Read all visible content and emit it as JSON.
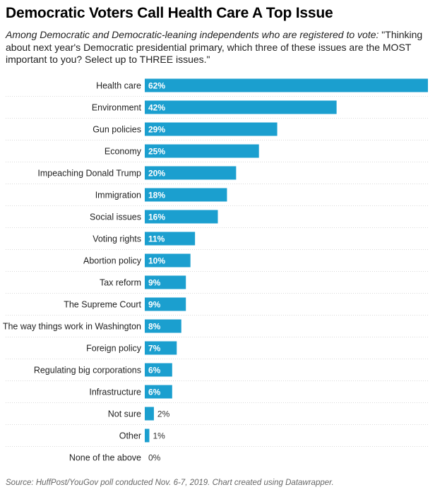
{
  "title": "Democratic Voters Call Health Care A Top Issue",
  "subtitle": {
    "lead": "Among Democratic and Democratic-leaning independents who are registered to vote:",
    "question": " \"Thinking about next year's Democratic presidential primary, which three of these issues are the MOST important to you? Select up to THREE issues.\""
  },
  "source": "Source: HuffPost/YouGov poll conducted Nov. 6-7, 2019. Chart created using Datawrapper.",
  "colors": {
    "bar": "#1b9fcf",
    "label_inside": "#ffffff",
    "label_outside": "#333333"
  },
  "chart_data": {
    "type": "bar",
    "orientation": "horizontal",
    "value_suffix": "%",
    "xlim": [
      0,
      62
    ],
    "grid": false,
    "categories": [
      "Health care",
      "Environment",
      "Gun policies",
      "Economy",
      "Impeaching Donald Trump",
      "Immigration",
      "Social issues",
      "Voting rights",
      "Abortion policy",
      "Tax reform",
      "The Supreme Court",
      "The way things work in Washington",
      "Foreign policy",
      "Regulating big corporations",
      "Infrastructure",
      "Not sure",
      "Other",
      "None of the above"
    ],
    "values": [
      62,
      42,
      29,
      25,
      20,
      18,
      16,
      11,
      10,
      9,
      9,
      8,
      7,
      6,
      6,
      2,
      1,
      0
    ],
    "data_labels": [
      "62%",
      "42%",
      "29%",
      "25%",
      "20%",
      "18%",
      "16%",
      "11%",
      "10%",
      "9%",
      "9%",
      "8%",
      "7%",
      "6%",
      "6%",
      "2%",
      "1%",
      "0%"
    ]
  }
}
